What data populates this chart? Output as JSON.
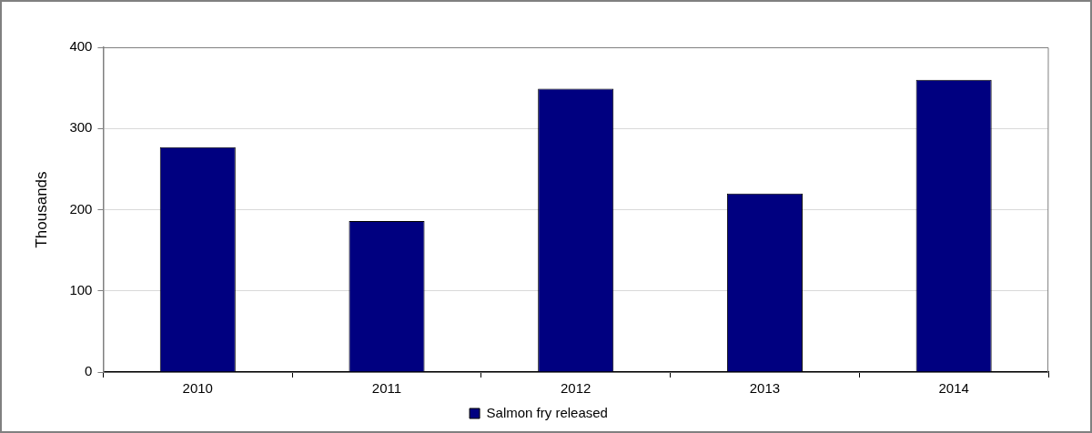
{
  "chart_data": {
    "type": "bar",
    "ylabel": "Thousands",
    "categories": [
      "2010",
      "2011",
      "2012",
      "2013",
      "2014"
    ],
    "series": [
      {
        "name": "Salmon fry released",
        "color": "#000080",
        "values": [
          277,
          186,
          349,
          220,
          360
        ]
      }
    ],
    "ylim": [
      0,
      400
    ],
    "yticks": [
      0,
      100,
      200,
      300,
      400
    ],
    "grid": "y",
    "legend": "bottom"
  }
}
